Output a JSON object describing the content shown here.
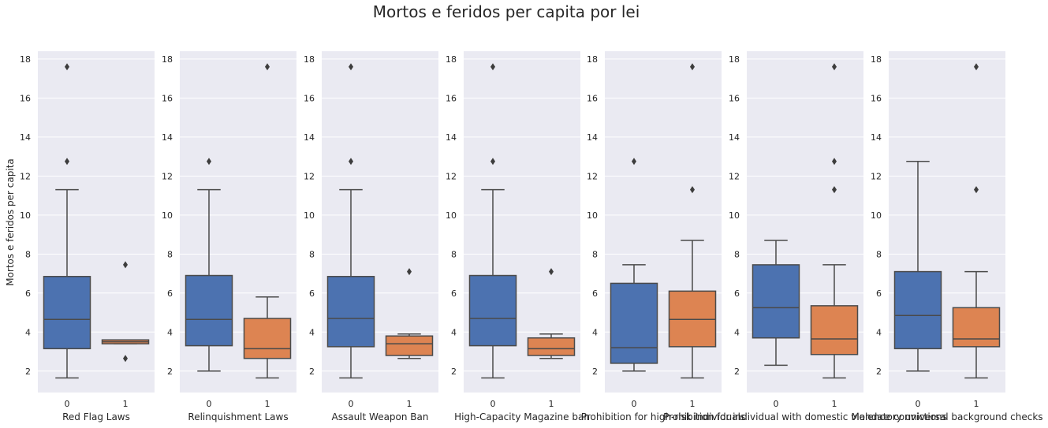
{
  "chart_data": {
    "type": "box",
    "title": "Mortos e feridos per capita por lei",
    "ylabel": "Mortos e feridos per capita",
    "ylim": [
      0.9,
      18.4
    ],
    "yticks": [
      "2",
      "4",
      "6",
      "8",
      "10",
      "12",
      "14",
      "16",
      "18"
    ],
    "categories": [
      "0",
      "1"
    ],
    "colors": {
      "0": "#4c72b0",
      "1": "#dd8452"
    },
    "background": "#eaeaf2",
    "grid": true,
    "panels": [
      {
        "xlabel": "Red Flag Laws",
        "boxes": [
          {
            "category": "0",
            "whislo": 1.65,
            "q1": 3.15,
            "med": 4.65,
            "q3": 6.85,
            "whishi": 11.3,
            "fliers": [
              12.75,
              17.6
            ]
          },
          {
            "category": "1",
            "whislo": 3.4,
            "q1": 3.4,
            "med": 3.5,
            "q3": 3.6,
            "whishi": 3.6,
            "fliers": [
              7.45,
              2.65
            ]
          }
        ]
      },
      {
        "xlabel": "Relinquishment Laws",
        "boxes": [
          {
            "category": "0",
            "whislo": 2.0,
            "q1": 3.3,
            "med": 4.65,
            "q3": 6.9,
            "whishi": 11.3,
            "fliers": [
              12.75
            ]
          },
          {
            "category": "1",
            "whislo": 1.65,
            "q1": 2.65,
            "med": 3.15,
            "q3": 4.7,
            "whishi": 5.8,
            "fliers": [
              17.6
            ]
          }
        ]
      },
      {
        "xlabel": "Assault Weapon Ban",
        "boxes": [
          {
            "category": "0",
            "whislo": 1.65,
            "q1": 3.25,
            "med": 4.7,
            "q3": 6.85,
            "whishi": 11.3,
            "fliers": [
              12.75,
              17.6
            ]
          },
          {
            "category": "1",
            "whislo": 2.65,
            "q1": 2.8,
            "med": 3.4,
            "q3": 3.8,
            "whishi": 3.9,
            "fliers": [
              7.1
            ]
          }
        ]
      },
      {
        "xlabel": "High-Capacity Magazine ban",
        "boxes": [
          {
            "category": "0",
            "whislo": 1.65,
            "q1": 3.3,
            "med": 4.7,
            "q3": 6.9,
            "whishi": 11.3,
            "fliers": [
              12.75,
              17.6
            ]
          },
          {
            "category": "1",
            "whislo": 2.65,
            "q1": 2.8,
            "med": 3.15,
            "q3": 3.7,
            "whishi": 3.9,
            "fliers": [
              7.1
            ]
          }
        ]
      },
      {
        "xlabel": "Prohibition for high-risk individuals",
        "boxes": [
          {
            "category": "0",
            "whislo": 2.0,
            "q1": 2.4,
            "med": 3.2,
            "q3": 6.5,
            "whishi": 7.45,
            "fliers": [
              12.75
            ]
          },
          {
            "category": "1",
            "whislo": 1.65,
            "q1": 3.25,
            "med": 4.65,
            "q3": 6.1,
            "whishi": 8.7,
            "fliers": [
              11.3,
              17.6
            ]
          }
        ]
      },
      {
        "xlabel": "Prohibition for individual with domestic violence convictions",
        "boxes": [
          {
            "category": "0",
            "whislo": 2.3,
            "q1": 3.7,
            "med": 5.25,
            "q3": 7.45,
            "whishi": 8.7,
            "fliers": []
          },
          {
            "category": "1",
            "whislo": 1.65,
            "q1": 2.85,
            "med": 3.65,
            "q3": 5.35,
            "whishi": 7.45,
            "fliers": [
              11.3,
              12.75,
              17.6
            ]
          }
        ]
      },
      {
        "xlabel": "Mandatory universal background checks",
        "boxes": [
          {
            "category": "0",
            "whislo": 2.0,
            "q1": 3.15,
            "med": 4.85,
            "q3": 7.1,
            "whishi": 12.75,
            "fliers": []
          },
          {
            "category": "1",
            "whislo": 1.65,
            "q1": 3.25,
            "med": 3.65,
            "q3": 5.25,
            "whishi": 7.1,
            "fliers": [
              11.3,
              17.6
            ]
          }
        ]
      }
    ]
  }
}
